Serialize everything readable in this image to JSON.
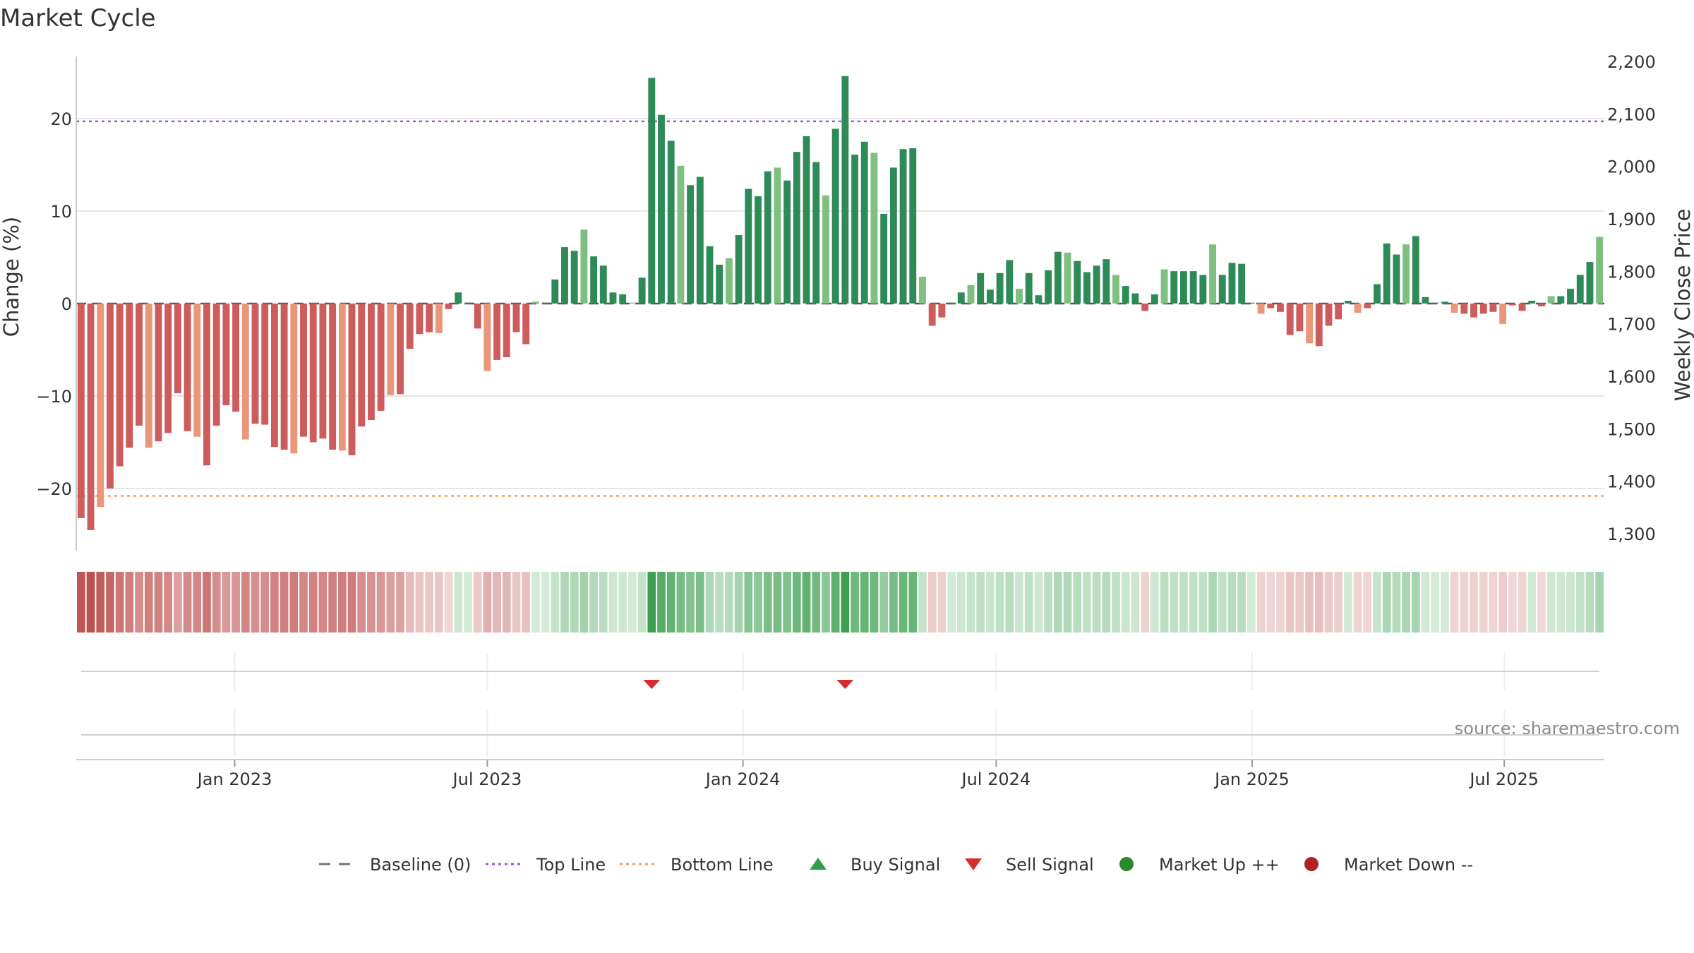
{
  "chart_data": {
    "type": "bar",
    "title": "Market Cycle",
    "ylabel": "Change (%)",
    "y2label": "Weekly Close Price",
    "ylim": [
      -26.5,
      26.5
    ],
    "y2lim": [
      1270,
      2215
    ],
    "yticks": [
      {
        "value": 20,
        "label": "20"
      },
      {
        "value": 10,
        "label": "10"
      },
      {
        "value": 0,
        "label": "0"
      },
      {
        "value": -10,
        "label": "−10"
      },
      {
        "value": -20,
        "label": "−20"
      }
    ],
    "y2ticks": [
      {
        "value": 2200,
        "label": "2,200"
      },
      {
        "value": 2100,
        "label": "2,100"
      },
      {
        "value": 2000,
        "label": "2,000"
      },
      {
        "value": 1900,
        "label": "1,900"
      },
      {
        "value": 1800,
        "label": "1,800"
      },
      {
        "value": 1700,
        "label": "1,700"
      },
      {
        "value": 1600,
        "label": "1,600"
      },
      {
        "value": 1500,
        "label": "1,500"
      },
      {
        "value": 1400,
        "label": "1,400"
      },
      {
        "value": 1300,
        "label": "1,300"
      }
    ],
    "xticks": [
      "Jan 2023",
      "Jul 2023",
      "Jan 2024",
      "Jul 2024",
      "Jan 2025",
      "Jul 2025"
    ],
    "top_line": 19.7,
    "bottom_line": -20.8,
    "values": [
      -23.2,
      -24.5,
      -22,
      -20,
      -17.6,
      -15.6,
      -13.2,
      -15.6,
      -14.9,
      -14,
      -9.7,
      -13.8,
      -14.4,
      -17.5,
      -13.2,
      -11,
      -11.7,
      -14.7,
      -13,
      -13.1,
      -15.5,
      -15.8,
      -16.2,
      -14.4,
      -15,
      -14.6,
      -15.8,
      -15.9,
      -16.4,
      -13.3,
      -12.6,
      -11.6,
      -9.9,
      -9.8,
      -4.9,
      -3.3,
      -3.1,
      -3.2,
      -0.6,
      1.2,
      0.1,
      -2.7,
      -7.3,
      -6.1,
      -5.8,
      -3.1,
      -4.4,
      0.2,
      0.1,
      2.6,
      6.1,
      5.7,
      8,
      5.1,
      4.1,
      1.2,
      1,
      0.1,
      2.8,
      24.4,
      20.4,
      17.6,
      14.9,
      12.8,
      13.7,
      6.2,
      4.2,
      4.9,
      7.4,
      12.4,
      11.6,
      14.3,
      14.7,
      13.3,
      16.4,
      18.1,
      15.3,
      11.7,
      18.9,
      24.6,
      16.1,
      17.5,
      16.3,
      9.7,
      14.7,
      16.7,
      16.8,
      2.9,
      -2.4,
      -1.5,
      0.1,
      1.2,
      2,
      3.3,
      1.5,
      3.3,
      4.7,
      1.6,
      3.3,
      0.9,
      3.6,
      5.6,
      5.5,
      4.6,
      3.4,
      4.1,
      4.8,
      3.1,
      1.9,
      1.1,
      -0.8,
      1,
      3.7,
      3.5,
      3.5,
      3.5,
      3.1,
      6.4,
      3.1,
      4.4,
      4.3,
      0.1,
      -1.1,
      -0.5,
      -0.9,
      -3.4,
      -3,
      -4.3,
      -4.6,
      -2.4,
      -1.7,
      0.3,
      -1,
      -0.5,
      2.1,
      6.5,
      5.3,
      6.4,
      7.3,
      0.7,
      0.1,
      0.2,
      -1,
      -1.1,
      -1.5,
      -1.1,
      -0.9,
      -2.2,
      -0.2,
      -0.8,
      0.3,
      -0.3,
      0.8,
      0.8,
      1.6,
      3.1,
      4.5,
      7.2
    ],
    "sell_signals": [
      59,
      79
    ],
    "buy_signals": [],
    "source": "source: sharemaestro.com",
    "legend": [
      {
        "label": "Baseline (0)",
        "kind": "dash",
        "color": "#777777"
      },
      {
        "label": "Top Line",
        "kind": "dot",
        "color": "#9b59d0"
      },
      {
        "label": "Bottom Line",
        "kind": "dot",
        "color": "#f0a060"
      },
      {
        "label": "Buy Signal",
        "kind": "triangle-up",
        "color": "#2e9e4e"
      },
      {
        "label": "Sell Signal",
        "kind": "triangle-down",
        "color": "#d62c2c"
      },
      {
        "label": "Market Up ++",
        "kind": "circle",
        "color": "#2a8a2a"
      },
      {
        "label": "Market Down --",
        "kind": "circle",
        "color": "#b22222"
      }
    ],
    "grid": true,
    "legend_position": "bottom-center"
  },
  "colors": {
    "pos_strong": "#2e8b57",
    "pos_light": "#7fbf7f",
    "neg_strong": "#cd5c5c",
    "neg_light": "#e9967a",
    "top_line": "#9b59d0",
    "bottom_line": "#f0a060",
    "sell": "#d62c2c",
    "buy": "#2e9e4e"
  }
}
